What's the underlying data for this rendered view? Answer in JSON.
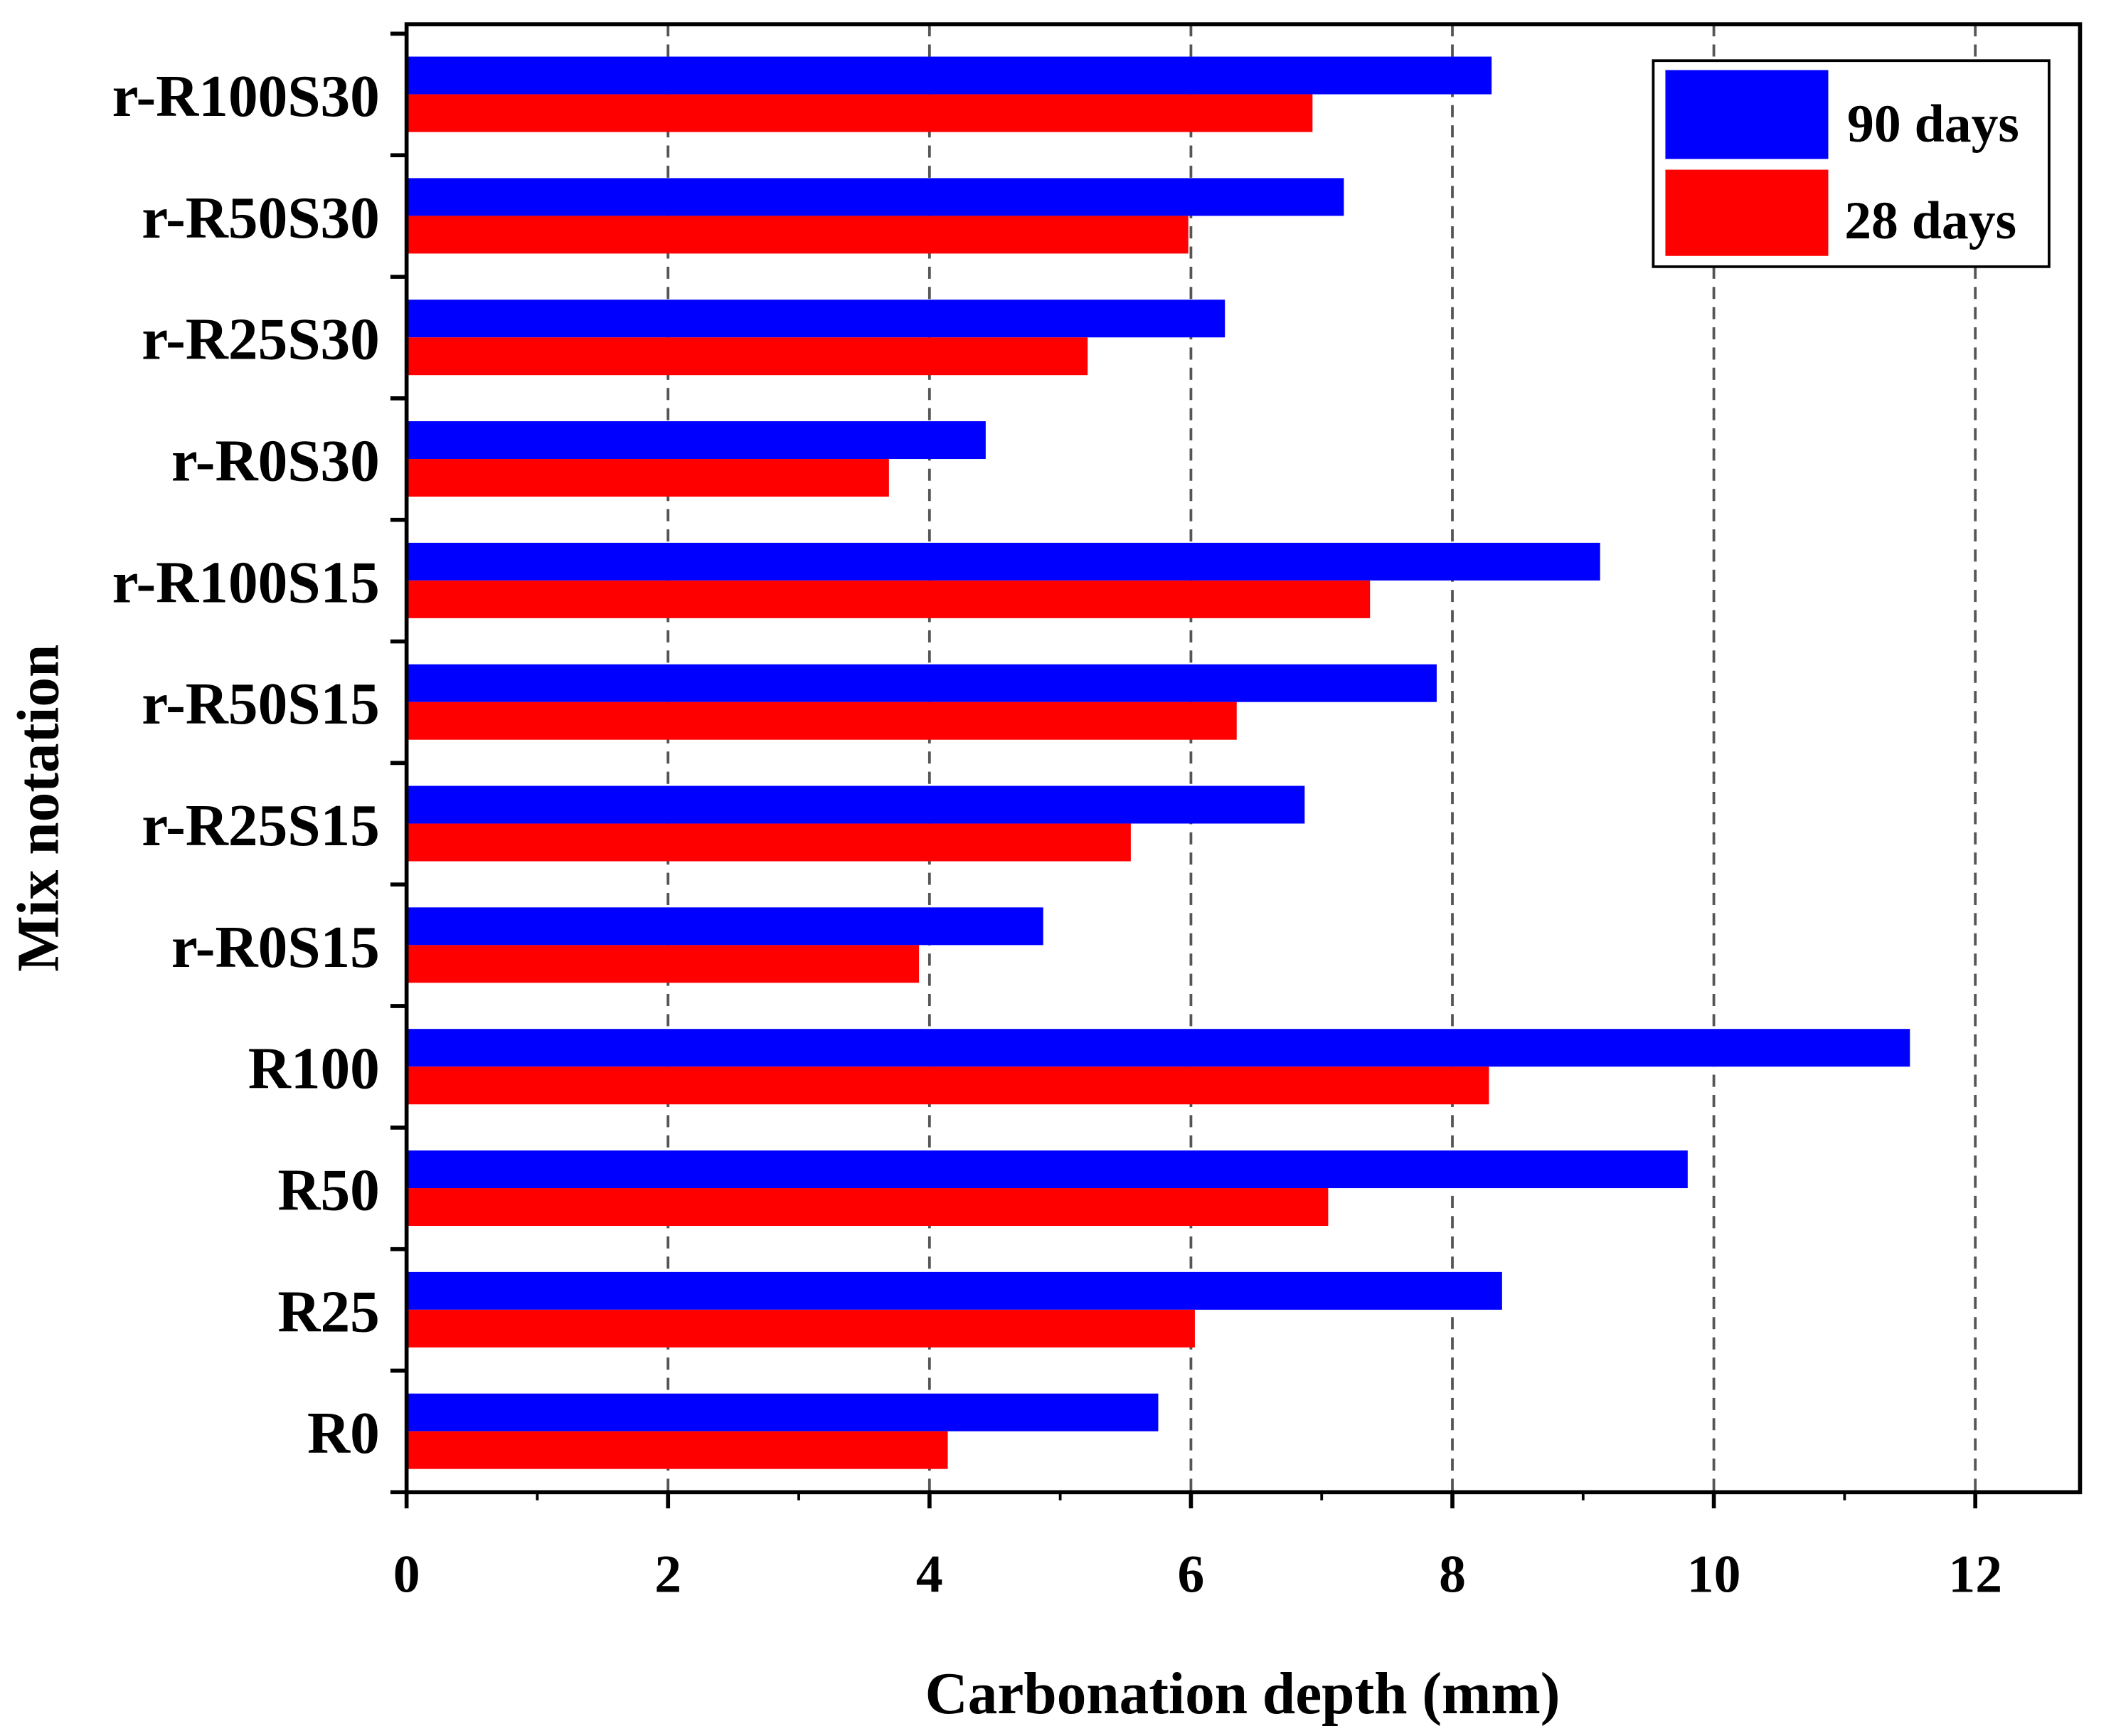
{
  "chart_data": {
    "type": "bar",
    "orientation": "horizontal",
    "categories": [
      "r-R100S30",
      "r-R50S30",
      "r-R25S30",
      "r-R0S30",
      "r-R100S15",
      "r-R50S15",
      "r-R25S15",
      "r-R0S15",
      "R100",
      "R50",
      "R25",
      "R0"
    ],
    "series": [
      {
        "name": "90 days",
        "color": "#0000ff",
        "values": [
          8.3,
          7.17,
          6.26,
          4.43,
          9.13,
          7.88,
          6.87,
          4.87,
          11.5,
          9.8,
          8.38,
          5.75
        ]
      },
      {
        "name": "28 days",
        "color": "#ff0000",
        "values": [
          6.93,
          5.98,
          5.21,
          3.69,
          7.37,
          6.35,
          5.54,
          3.92,
          8.28,
          7.05,
          6.03,
          4.14
        ]
      }
    ],
    "xlabel": "Carbonation depth (mm)",
    "ylabel": "Mix notation",
    "xlim": [
      0,
      12.8
    ],
    "xticks": [
      "0",
      "2",
      "4",
      "6",
      "8",
      "10",
      "12"
    ],
    "grid": "vertical dashed",
    "legend_position": "top-right"
  }
}
